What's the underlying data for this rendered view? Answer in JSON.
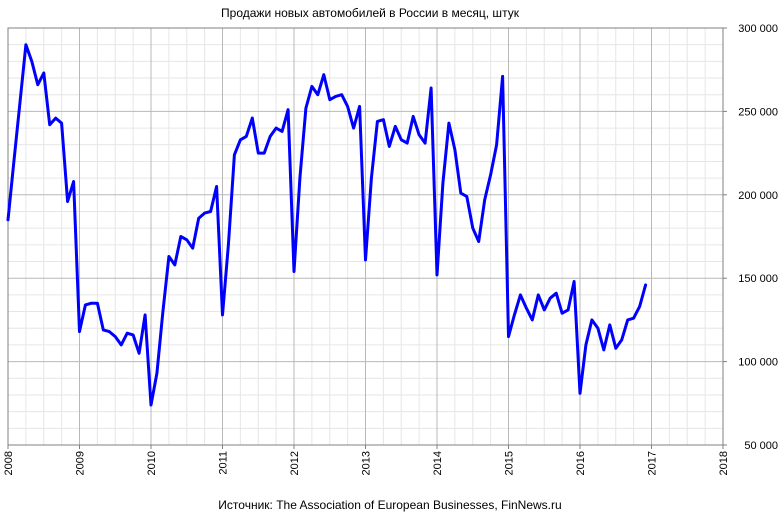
{
  "chart_data": {
    "type": "line",
    "title": "Продажи новых автомобилей в России в месяц, штук",
    "source": "Источник: The Association of European Businesses, FinNews.ru",
    "xlabel": "",
    "ylabel": "",
    "xlim": [
      2008,
      2018
    ],
    "ylim": [
      50000,
      300000
    ],
    "x_ticks": [
      "2008",
      "2009",
      "2010",
      "2011",
      "2012",
      "2013",
      "2014",
      "2015",
      "2016",
      "2017",
      "2018"
    ],
    "y_ticks": [
      "50 000",
      "100 000",
      "150 000",
      "200 000",
      "250 000",
      "300 000"
    ],
    "y_tick_values": [
      50000,
      100000,
      150000,
      200000,
      250000,
      300000
    ],
    "grid": true,
    "colors": {
      "series": "#0000ff",
      "grid": "#c0c0c0",
      "border": "#808080"
    },
    "series": [
      {
        "x": [
          2008.0,
          2008.083,
          2008.167,
          2008.25,
          2008.333,
          2008.417,
          2008.5,
          2008.583,
          2008.667,
          2008.75,
          2008.833,
          2008.917,
          2009.0,
          2009.083,
          2009.167,
          2009.25,
          2009.333,
          2009.417,
          2009.5,
          2009.583,
          2009.667,
          2009.75,
          2009.833,
          2009.917,
          2010.0,
          2010.083,
          2010.167,
          2010.25,
          2010.333,
          2010.417,
          2010.5,
          2010.583,
          2010.667,
          2010.75,
          2010.833,
          2010.917,
          2011.0,
          2011.083,
          2011.167,
          2011.25,
          2011.333,
          2011.417,
          2011.5,
          2011.583,
          2011.667,
          2011.75,
          2011.833,
          2011.917,
          2012.0,
          2012.083,
          2012.167,
          2012.25,
          2012.333,
          2012.417,
          2012.5,
          2012.583,
          2012.667,
          2012.75,
          2012.833,
          2012.917,
          2013.0,
          2013.083,
          2013.167,
          2013.25,
          2013.333,
          2013.417,
          2013.5,
          2013.583,
          2013.667,
          2013.75,
          2013.833,
          2013.917,
          2014.0,
          2014.083,
          2014.167,
          2014.25,
          2014.333,
          2014.417,
          2014.5,
          2014.583,
          2014.667,
          2014.75,
          2014.833,
          2014.917,
          2015.0,
          2015.083,
          2015.167,
          2015.25,
          2015.333,
          2015.417,
          2015.5,
          2015.583,
          2015.667,
          2015.75,
          2015.833,
          2015.917,
          2016.0,
          2016.083,
          2016.167,
          2016.25,
          2016.333,
          2016.417,
          2016.5,
          2016.583,
          2016.667,
          2016.75,
          2016.833,
          2016.917,
          2017.0
        ],
        "values": [
          185000,
          220000,
          255000,
          290000,
          280000,
          266000,
          273000,
          242000,
          246000,
          243000,
          196000,
          208000,
          118000,
          134000,
          135000,
          135000,
          119000,
          118000,
          115000,
          110000,
          117000,
          116000,
          105000,
          128000,
          74000,
          93000,
          130000,
          163000,
          158000,
          175000,
          173000,
          168000,
          186000,
          189000,
          190000,
          205000,
          128000,
          170000,
          224000,
          233000,
          235000,
          246000,
          225000,
          225000,
          235000,
          240000,
          238000,
          251000,
          154000,
          210000,
          252000,
          265000,
          260000,
          272000,
          257000,
          259000,
          260000,
          253000,
          240000,
          253000,
          161000,
          210000,
          244000,
          245000,
          229000,
          241000,
          233000,
          231000,
          247000,
          236000,
          231000,
          264000,
          152000,
          207000,
          243000,
          227000,
          201000,
          199000,
          180000,
          172000,
          197000,
          212000,
          230000,
          271000,
          115000,
          128000,
          140000,
          132000,
          125000,
          140000,
          131000,
          138000,
          141000,
          129000,
          131000,
          148000,
          81000,
          110000,
          125000,
          120000,
          107000,
          122000,
          108000,
          113000,
          125000,
          126000,
          133000,
          146000,
          null
        ]
      }
    ]
  }
}
